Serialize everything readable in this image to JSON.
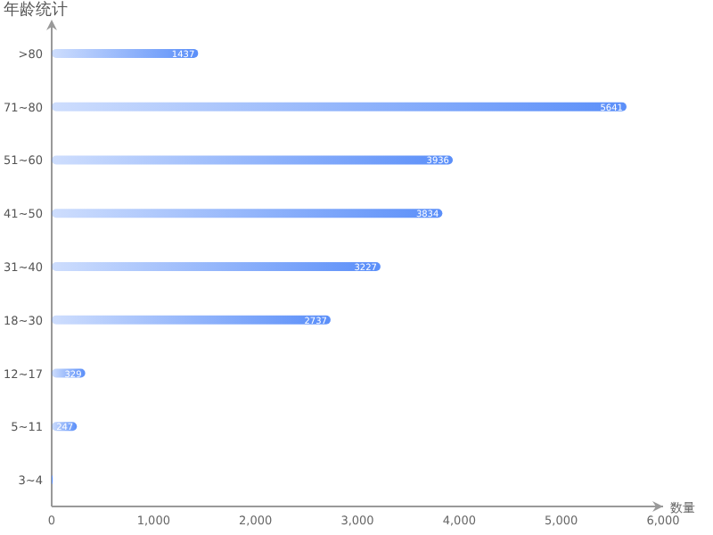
{
  "chart_data": {
    "type": "bar",
    "orientation": "horizontal",
    "ylabel": "年龄统计",
    "xlabel": "数量",
    "categories": [
      ">80",
      "71~80",
      "51~60",
      "41~50",
      "31~40",
      "18~30",
      "12~17",
      "5~11",
      "3~4"
    ],
    "values": [
      1437,
      5641,
      3936,
      3834,
      3227,
      2737,
      329,
      247,
      10
    ],
    "value_labels": [
      "1437",
      "5641",
      "3936",
      "3834",
      "3227",
      "2737",
      "329",
      "247",
      null
    ],
    "color": "#5b8ff9",
    "xlim": [
      0,
      6000
    ],
    "xticks": [
      {
        "value": 0,
        "label": "0"
      },
      {
        "value": 1000,
        "label": "1,000"
      },
      {
        "value": 2000,
        "label": "2,000"
      },
      {
        "value": 3000,
        "label": "3,000"
      },
      {
        "value": 4000,
        "label": "4,000"
      },
      {
        "value": 5000,
        "label": "5,000"
      },
      {
        "value": 6000,
        "label": "6,000"
      }
    ]
  }
}
